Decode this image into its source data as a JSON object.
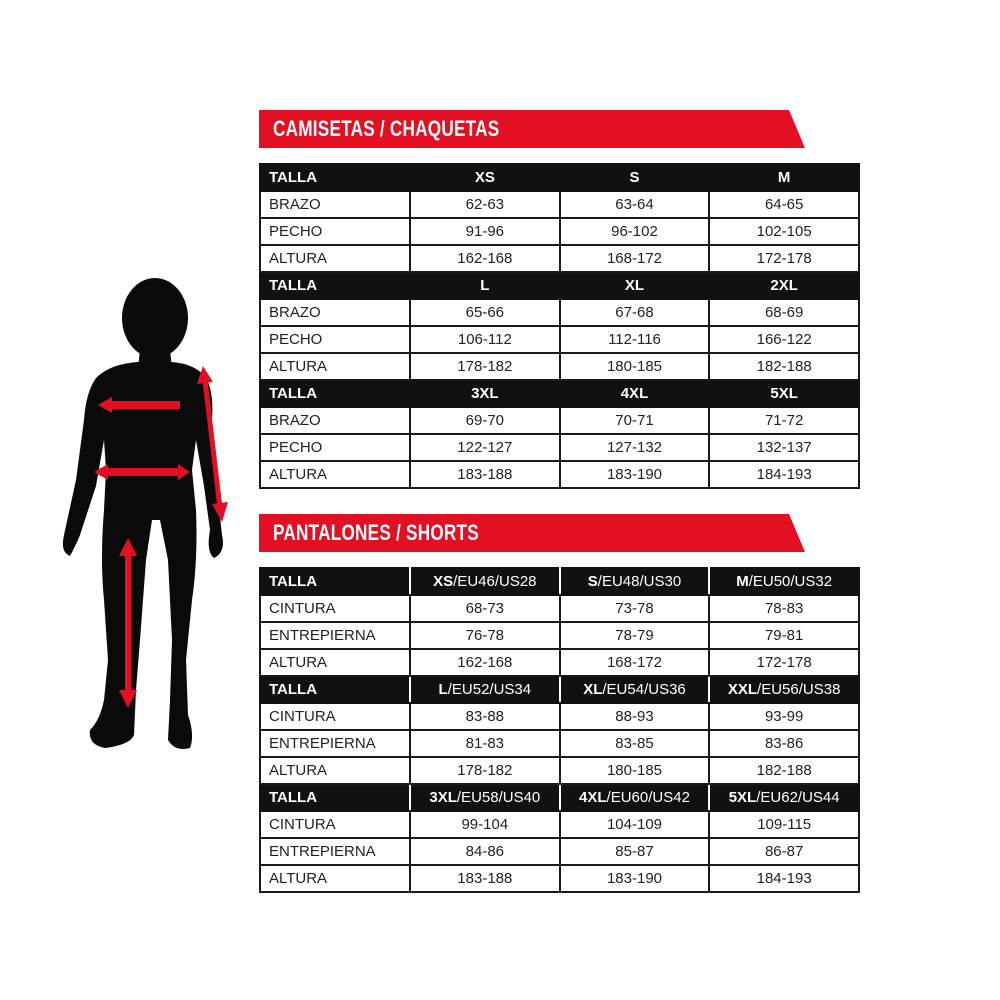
{
  "accent_color": "#e30f23",
  "figure": {
    "icon": "human-silhouette-measurement-icon"
  },
  "shirts": {
    "title": "CAMISETAS / CHAQUETAS",
    "blocks": [
      {
        "header": "TALLA",
        "sizes": [
          "XS",
          "S",
          "M"
        ],
        "rows": [
          {
            "label": "BRAZO",
            "values": [
              "62-63",
              "63-64",
              "64-65"
            ]
          },
          {
            "label": "PECHO",
            "values": [
              "91-96",
              "96-102",
              "102-105"
            ]
          },
          {
            "label": "ALTURA",
            "values": [
              "162-168",
              "168-172",
              "172-178"
            ]
          }
        ]
      },
      {
        "header": "TALLA",
        "sizes": [
          "L",
          "XL",
          "2XL"
        ],
        "rows": [
          {
            "label": "BRAZO",
            "values": [
              "65-66",
              "67-68",
              "68-69"
            ]
          },
          {
            "label": "PECHO",
            "values": [
              "106-112",
              "112-116",
              "166-122"
            ]
          },
          {
            "label": "ALTURA",
            "values": [
              "178-182",
              "180-185",
              "182-188"
            ]
          }
        ]
      },
      {
        "header": "TALLA",
        "sizes": [
          "3XL",
          "4XL",
          "5XL"
        ],
        "rows": [
          {
            "label": "BRAZO",
            "values": [
              "69-70",
              "70-71",
              "71-72"
            ]
          },
          {
            "label": "PECHO",
            "values": [
              "122-127",
              "127-132",
              "132-137"
            ]
          },
          {
            "label": "ALTURA",
            "values": [
              "183-188",
              "183-190",
              "184-193"
            ]
          }
        ]
      }
    ]
  },
  "pants": {
    "title": "PANTALONES / SHORTS",
    "blocks": [
      {
        "header": "TALLA",
        "sizes": [
          {
            "size": "XS",
            "suffix": "/EU46/US28"
          },
          {
            "size": "S",
            "suffix": "/EU48/US30"
          },
          {
            "size": "M",
            "suffix": "/EU50/US32"
          }
        ],
        "rows": [
          {
            "label": "CINTURA",
            "values": [
              "68-73",
              "73-78",
              "78-83"
            ]
          },
          {
            "label": "ENTREPIERNA",
            "values": [
              "76-78",
              "78-79",
              "79-81"
            ]
          },
          {
            "label": "ALTURA",
            "values": [
              "162-168",
              "168-172",
              "172-178"
            ]
          }
        ]
      },
      {
        "header": "TALLA",
        "sizes": [
          {
            "size": "L",
            "suffix": "/EU52/US34"
          },
          {
            "size": "XL",
            "suffix": "/EU54/US36"
          },
          {
            "size": "XXL",
            "suffix": "/EU56/US38"
          }
        ],
        "rows": [
          {
            "label": "CINTURA",
            "values": [
              "83-88",
              "88-93",
              "93-99"
            ]
          },
          {
            "label": "ENTREPIERNA",
            "values": [
              "81-83",
              "83-85",
              "83-86"
            ]
          },
          {
            "label": "ALTURA",
            "values": [
              "178-182",
              "180-185",
              "182-188"
            ]
          }
        ]
      },
      {
        "header": "TALLA",
        "sizes": [
          {
            "size": "3XL",
            "suffix": "/EU58/US40"
          },
          {
            "size": "4XL",
            "suffix": "/EU60/US42"
          },
          {
            "size": "5XL",
            "suffix": "/EU62/US44"
          }
        ],
        "rows": [
          {
            "label": "CINTURA",
            "values": [
              "99-104",
              "104-109",
              "109-115"
            ]
          },
          {
            "label": "ENTREPIERNA",
            "values": [
              "84-86",
              "85-87",
              "86-87"
            ]
          },
          {
            "label": "ALTURA",
            "values": [
              "183-188",
              "183-190",
              "184-193"
            ]
          }
        ]
      }
    ]
  }
}
